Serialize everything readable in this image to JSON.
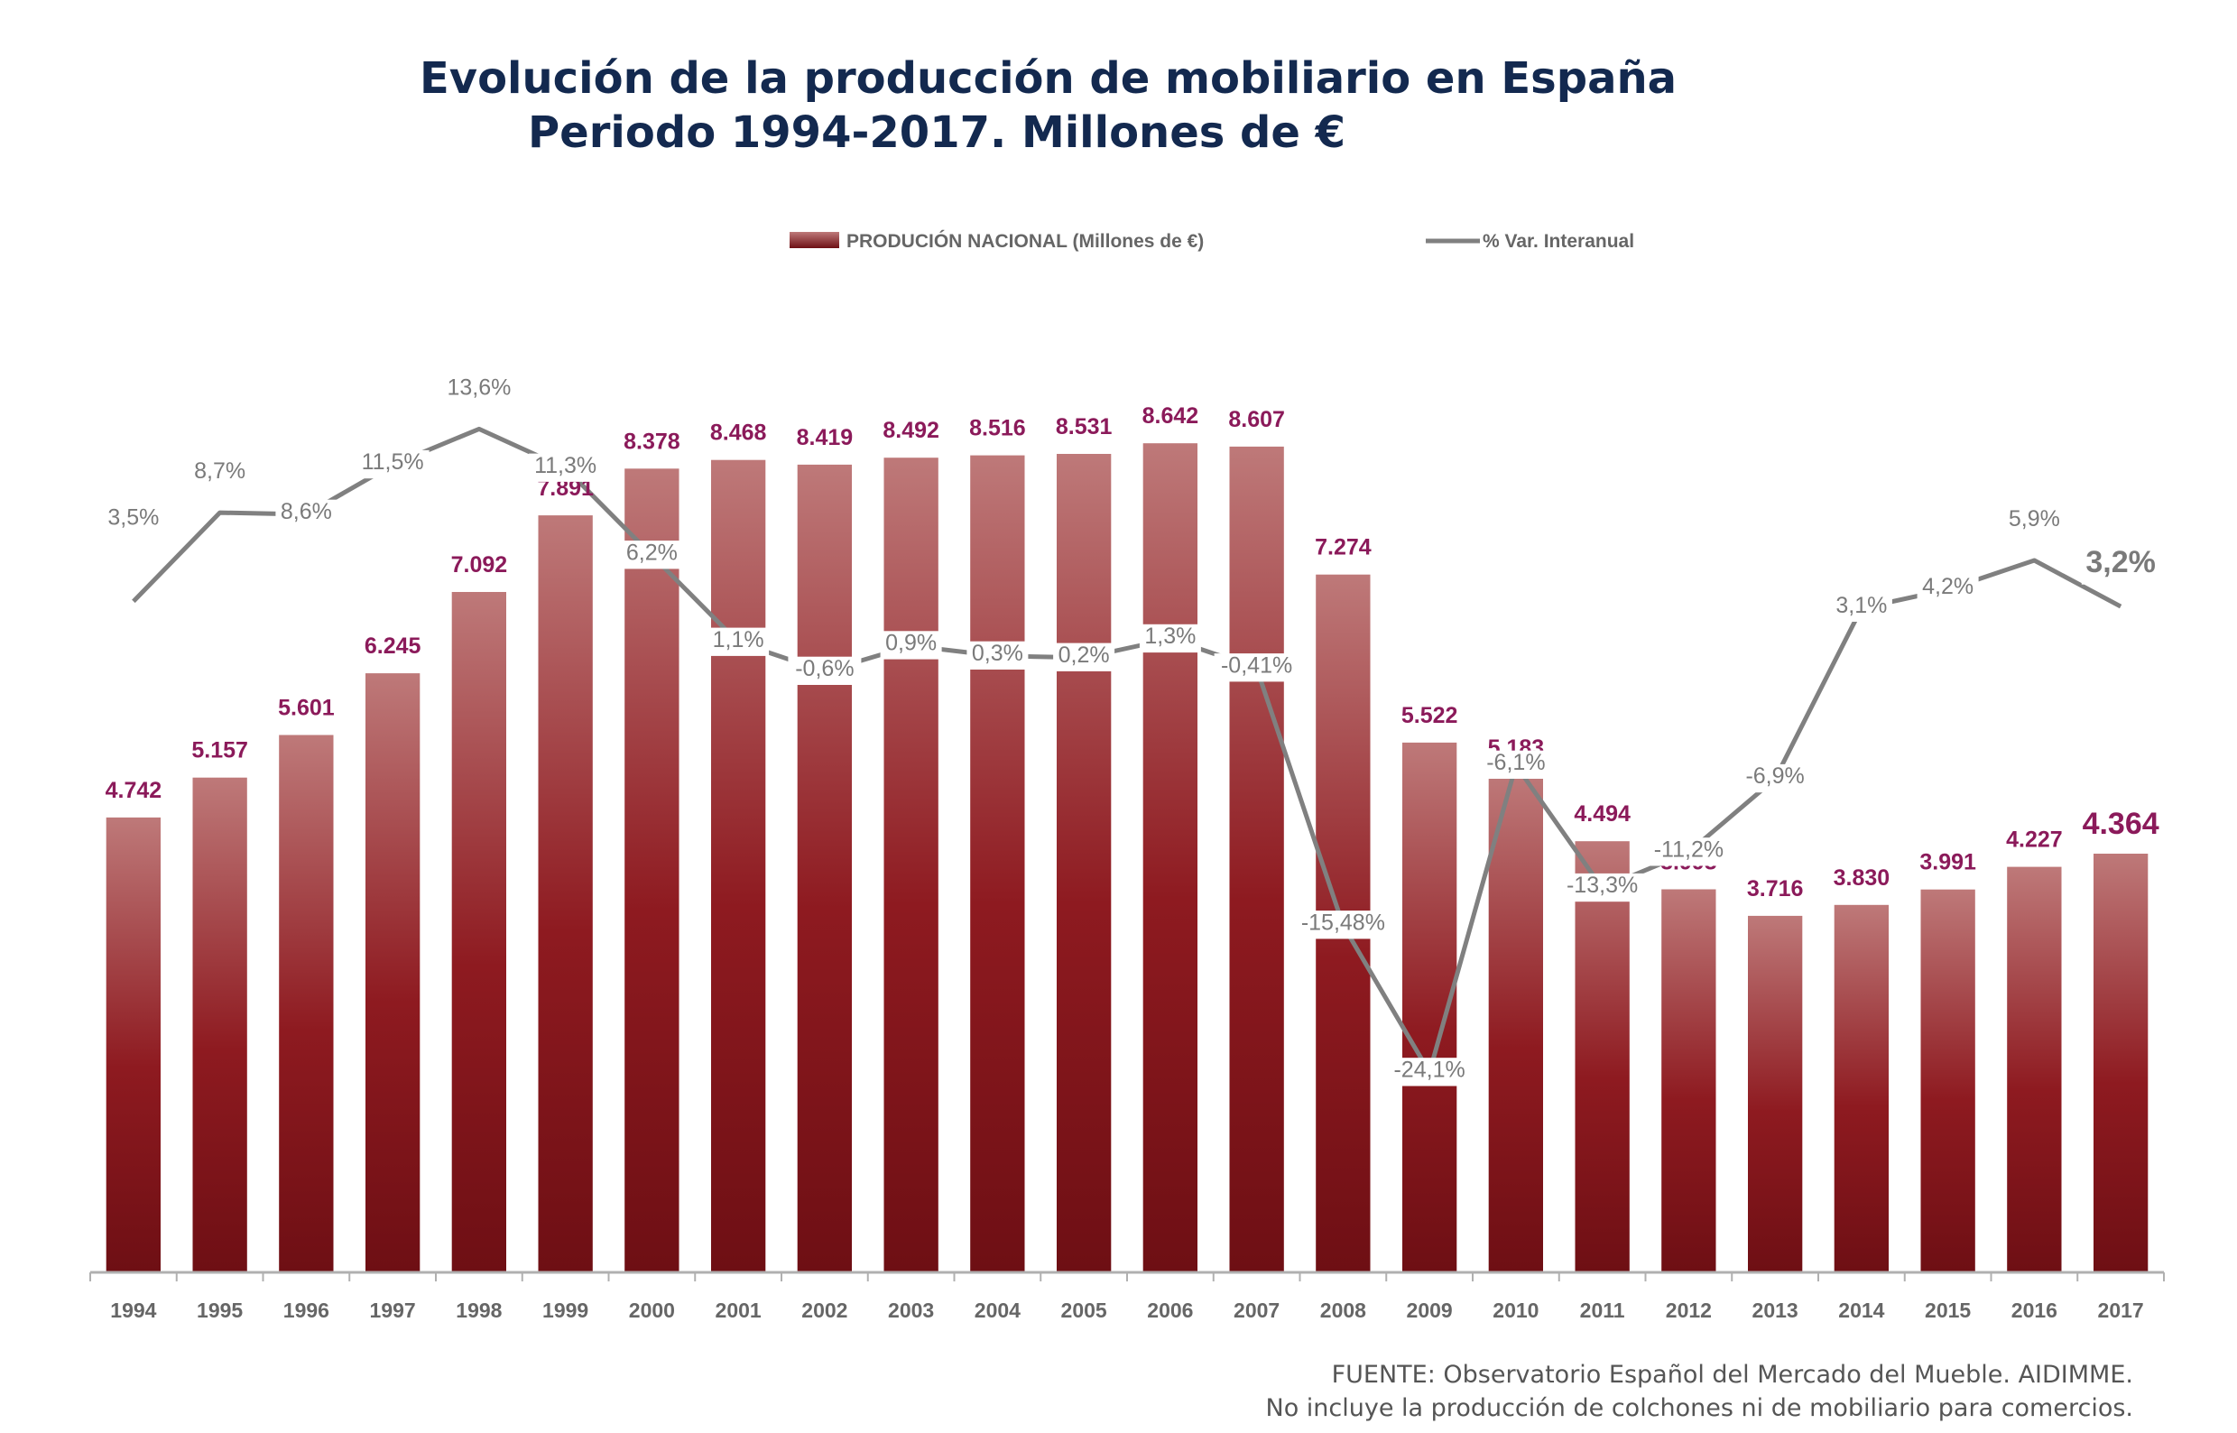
{
  "chart_data": {
    "type": "bar",
    "title": [
      "Evolución de la producción de mobiliario en España",
      "Periodo 1994-2017. Millones de €"
    ],
    "categories": [
      "1994",
      "1995",
      "1996",
      "1997",
      "1998",
      "1999",
      "2000",
      "2001",
      "2002",
      "2003",
      "2004",
      "2005",
      "2006",
      "2007",
      "2008",
      "2009",
      "2010",
      "2011",
      "2012",
      "2013",
      "2014",
      "2015",
      "2016",
      "2017"
    ],
    "series": [
      {
        "name": "PRODUCIÓN NACIONAL (Millones de €)",
        "kind": "bar",
        "color": "#8e1a20",
        "values": [
          4742,
          5157,
          5601,
          6245,
          7092,
          7891,
          8378,
          8468,
          8419,
          8492,
          8516,
          8531,
          8642,
          8607,
          7274,
          5522,
          5183,
          4494,
          3993,
          3716,
          3830,
          3991,
          4227,
          4364
        ],
        "labels": [
          "4.742",
          "5.157",
          "5.601",
          "6.245",
          "7.092",
          "7.891",
          "8.378",
          "8.468",
          "8.419",
          "8.492",
          "8.516",
          "8.531",
          "8.642",
          "8.607",
          "7.274",
          "5.522",
          "5.183",
          "4.494",
          "3.993",
          "3.716",
          "3.830",
          "3.991",
          "4.227",
          "4.364"
        ]
      },
      {
        "name": "% Var. Interanual",
        "kind": "line",
        "color": "#808080",
        "values": [
          3.5,
          8.7,
          8.6,
          11.5,
          13.6,
          11.3,
          6.2,
          1.1,
          -0.6,
          0.9,
          0.3,
          0.2,
          1.3,
          -0.41,
          -15.48,
          -24.1,
          -6.1,
          -13.3,
          -11.2,
          -6.9,
          3.1,
          4.2,
          5.9,
          3.2
        ],
        "labels": [
          "3,5%",
          "8,7%",
          "8,6%",
          "11,5%",
          "13,6%",
          "11,3%",
          "6,2%",
          "1,1%",
          "-0,6%",
          "0,9%",
          "0,3%",
          "0,2%",
          "1,3%",
          "-0,41%",
          "-15,48%",
          "-24,1%",
          "-6,1%",
          "-13,3%",
          "-11,2%",
          "-6,9%",
          "3,1%",
          "4,2%",
          "5,9%",
          "3,2%"
        ]
      }
    ],
    "ylim": [
      0,
      9500
    ],
    "y2lim": [
      -30,
      16
    ],
    "grid": false,
    "legend": "top-center",
    "source": [
      "FUENTE: Observatorio Español del Mercado del Mueble. AIDIMME.",
      "No incluye la producción de colchones ni de mobiliario para comercios."
    ],
    "colors": {
      "bar_top": "#be7979",
      "bar_bottom": "#6e0f14",
      "bar_label": "#8b1a5a",
      "line": "#808080",
      "line_label": "#7a7a7a",
      "title": "#13294f",
      "axis_label": "#666666"
    }
  }
}
